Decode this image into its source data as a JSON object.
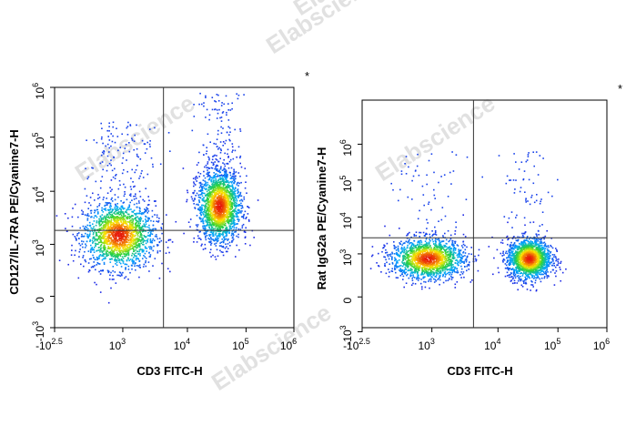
{
  "watermark": "Elabscience",
  "watermark_mark": "®",
  "chart_data": [
    {
      "type": "scatter",
      "xlabel": "CD3 FITC-H",
      "ylabel": "CD127/IL-7RA PE/Cyanine7-H",
      "corner_mark": "*",
      "x_scale": "biexponential",
      "y_scale": "biexponential",
      "xlim": [
        -316,
        1000000
      ],
      "ylim": [
        -1000,
        1000000
      ],
      "x_ticks": [
        {
          "base": "-10",
          "exp": "2.5"
        },
        {
          "base": "10",
          "exp": "3"
        },
        {
          "base": "10",
          "exp": "4"
        },
        {
          "base": "10",
          "exp": "5"
        },
        {
          "base": "10",
          "exp": "6"
        }
      ],
      "y_ticks": [
        {
          "base": "-10",
          "exp": "3"
        },
        {
          "base": "0",
          "exp": ""
        },
        {
          "base": "10",
          "exp": "3"
        },
        {
          "base": "10",
          "exp": "4"
        },
        {
          "base": "10",
          "exp": "5"
        },
        {
          "base": "10",
          "exp": "6"
        }
      ],
      "quadrant_gate": {
        "x": 4000,
        "y": 2500
      },
      "populations": [
        {
          "x_center": 300,
          "y_center": 600,
          "n": 1800
        },
        {
          "x_center": 32000,
          "y_center": 2600,
          "n": 1900
        }
      ]
    },
    {
      "type": "scatter",
      "xlabel": "CD3 FITC-H",
      "ylabel": "Rat IgG2a PE/Cyanine7-H",
      "corner_mark": "*",
      "x_scale": "biexponential",
      "y_scale": "biexponential",
      "xlim": [
        -316,
        1000000
      ],
      "ylim": [
        -1000,
        1000000
      ],
      "x_ticks": [
        {
          "base": "-10",
          "exp": "2.5"
        },
        {
          "base": "10",
          "exp": "3"
        },
        {
          "base": "10",
          "exp": "4"
        },
        {
          "base": "10",
          "exp": "5"
        },
        {
          "base": "10",
          "exp": "6"
        }
      ],
      "y_ticks": [
        {
          "base": "-10",
          "exp": "3"
        },
        {
          "base": "0",
          "exp": ""
        },
        {
          "base": "10",
          "exp": "3"
        },
        {
          "base": "10",
          "exp": "4"
        },
        {
          "base": "10",
          "exp": "5"
        },
        {
          "base": "10",
          "exp": "6"
        }
      ],
      "quadrant_gate": {
        "x": 4000,
        "y": 2500
      },
      "populations": [
        {
          "x_center": 300,
          "y_center": 200,
          "n": 1600
        },
        {
          "x_center": 30000,
          "y_center": 200,
          "n": 1700
        }
      ]
    }
  ]
}
